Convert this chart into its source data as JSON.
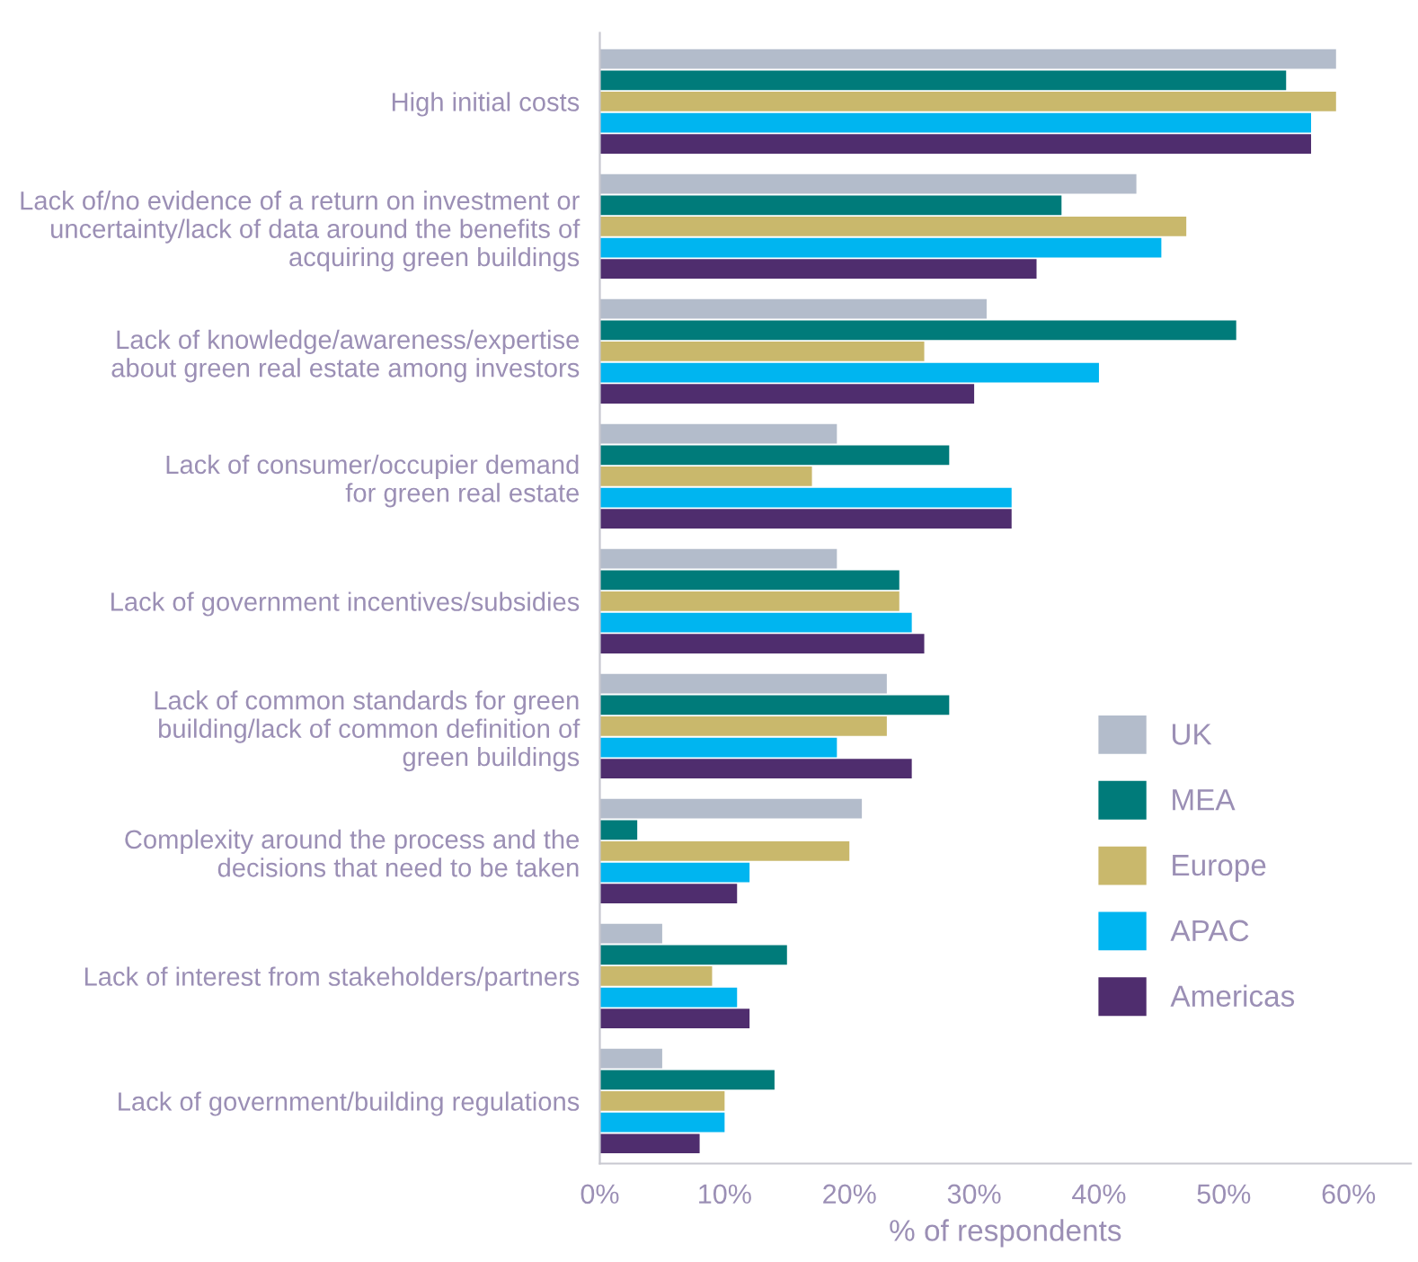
{
  "chart_data": {
    "type": "bar",
    "orientation": "horizontal",
    "categories": [
      "High initial costs",
      "Lack of/no evidence of a return on investment or\nuncertainty/lack of data around the benefits of\nacquiring green buildings",
      "Lack of knowledge/awareness/expertise\nabout green real estate among investors",
      "Lack of consumer/occupier demand\nfor green real estate",
      "Lack of government incentives/subsidies",
      "Lack of common standards for green\nbuilding/lack of common definition of\ngreen buildings",
      "Complexity around the process and the\ndecisions that need to be taken",
      "Lack of interest from stakeholders/partners",
      "Lack of government/building regulations"
    ],
    "series": [
      {
        "name": "UK",
        "color": "#b3bccb",
        "values": [
          59,
          43,
          31,
          19,
          19,
          23,
          21,
          5,
          5
        ]
      },
      {
        "name": "MEA",
        "color": "#007b7a",
        "values": [
          55,
          37,
          51,
          28,
          24,
          28,
          3,
          15,
          14
        ]
      },
      {
        "name": "Europe",
        "color": "#c9b86c",
        "values": [
          59,
          47,
          26,
          17,
          24,
          23,
          20,
          9,
          10
        ]
      },
      {
        "name": "APAC",
        "color": "#00b5f0",
        "values": [
          57,
          45,
          40,
          33,
          25,
          19,
          12,
          11,
          10
        ]
      },
      {
        "name": "Americas",
        "color": "#4f2d6e",
        "values": [
          57,
          35,
          30,
          33,
          26,
          25,
          11,
          12,
          8
        ]
      }
    ],
    "xlabel": "% of respondents",
    "xlim": [
      0,
      65
    ],
    "xticks": [
      {
        "value": 0,
        "label": "0%"
      },
      {
        "value": 10,
        "label": "10%"
      },
      {
        "value": 20,
        "label": "20%"
      },
      {
        "value": 30,
        "label": "30%"
      },
      {
        "value": 40,
        "label": "40%"
      },
      {
        "value": 50,
        "label": "50%"
      },
      {
        "value": 60,
        "label": "60%"
      }
    ],
    "grid": false,
    "legend": "bottom right"
  }
}
